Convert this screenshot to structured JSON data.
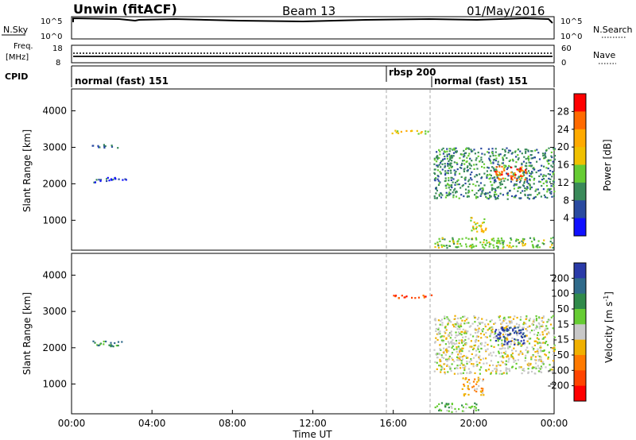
{
  "header": {
    "station": "Unwin (fitACF)",
    "beam": "Beam 13",
    "date": "01/May/2016"
  },
  "noise_panel": {
    "left_label": "N.Sky",
    "left_ticks": [
      "10^5",
      "10^0"
    ],
    "right_label": "N.Search",
    "right_ticks": [
      "10^5",
      "10^0"
    ]
  },
  "freq_panel": {
    "left_label_1": "Freq.",
    "left_label_2": "[MHz]",
    "left_ticks": [
      "18",
      "8"
    ],
    "right_label": "Nave",
    "right_ticks": [
      "60",
      "0"
    ]
  },
  "cpid_panel": {
    "label": "CPID",
    "segments": [
      {
        "label": "normal (fast) 151",
        "start_hour": 0
      },
      {
        "label": "rbsp 200",
        "start_hour": 15.9
      },
      {
        "label": "normal (fast) 151",
        "start_hour": 18.0
      }
    ]
  },
  "x_axis": {
    "title": "Time UT",
    "ticks": [
      "00:00",
      "04:00",
      "08:00",
      "12:00",
      "16:00",
      "20:00",
      "00:00"
    ]
  },
  "power_colorbar": {
    "label": "Power [dB]",
    "ticks": [
      "28",
      "24",
      "20",
      "16",
      "12",
      "8",
      "4"
    ],
    "colors": [
      "#ff0000",
      "#ff6a00",
      "#ffaa00",
      "#f0c000",
      "#66cc33",
      "#3a8a5a",
      "#2a4aa0",
      "#1010ff"
    ]
  },
  "velocity_colorbar": {
    "label_main": "Velocity [m s",
    "label_sup": "-1",
    "label_end": "]",
    "ticks": [
      "200",
      "100",
      "50",
      "15",
      "-15",
      "-50",
      "-100",
      "-200"
    ],
    "colors": [
      "#2a3aa8",
      "#2f6a8a",
      "#2f8a4a",
      "#66cc33",
      "#c8c8c8",
      "#f0b000",
      "#ff7a00",
      "#ff4400",
      "#ff0000"
    ]
  },
  "chart_data": [
    {
      "type": "heatmap",
      "title": "Power",
      "ylabel": "Slant Range [km]",
      "xlabel": "",
      "xlim_hours": [
        0,
        24
      ],
      "ylim": [
        180,
        4600
      ],
      "yticks": [
        "4000",
        "3000",
        "2000",
        "1000"
      ],
      "regions": [
        {
          "t0": 1.0,
          "t1": 2.7,
          "r0": 2050,
          "r1": 2200,
          "level": 1
        },
        {
          "t0": 1.0,
          "t1": 2.3,
          "r0": 3000,
          "r1": 3100,
          "level": 1
        },
        {
          "t0": 15.9,
          "t1": 17.9,
          "r0": 3380,
          "r1": 3480,
          "level": 4
        },
        {
          "t0": 18.0,
          "t1": 24.0,
          "r0": 1600,
          "r1": 3000,
          "level": 2
        },
        {
          "t0": 21.0,
          "t1": 22.6,
          "r0": 2100,
          "r1": 2500,
          "level": 6
        },
        {
          "t0": 18.0,
          "t1": 24.0,
          "r0": 250,
          "r1": 550,
          "level": 3
        },
        {
          "t0": 19.8,
          "t1": 20.6,
          "r0": 700,
          "r1": 1100,
          "level": 4
        }
      ]
    },
    {
      "type": "heatmap",
      "title": "Velocity",
      "ylabel": "Slant Range [km]",
      "xlabel": "Time UT",
      "xlim_hours": [
        0,
        24
      ],
      "ylim": [
        180,
        4600
      ],
      "yticks": [
        "4000",
        "3000",
        "2000",
        "1000"
      ],
      "regions": [
        {
          "t0": 1.0,
          "t1": 2.7,
          "r0": 2050,
          "r1": 2200,
          "level": 6
        },
        {
          "t0": 15.9,
          "t1": 17.9,
          "r0": 3380,
          "r1": 3480,
          "level": 1
        },
        {
          "t0": 18.0,
          "t1": 24.0,
          "r0": 1300,
          "r1": 2900,
          "level": 4
        },
        {
          "t0": 21.0,
          "t1": 22.6,
          "r0": 2100,
          "r1": 2600,
          "level": 8
        },
        {
          "t0": 18.0,
          "t1": 20.2,
          "r0": 250,
          "r1": 500,
          "level": 5
        },
        {
          "t0": 19.4,
          "t1": 20.5,
          "r0": 700,
          "r1": 1200,
          "level": 3
        }
      ]
    }
  ]
}
